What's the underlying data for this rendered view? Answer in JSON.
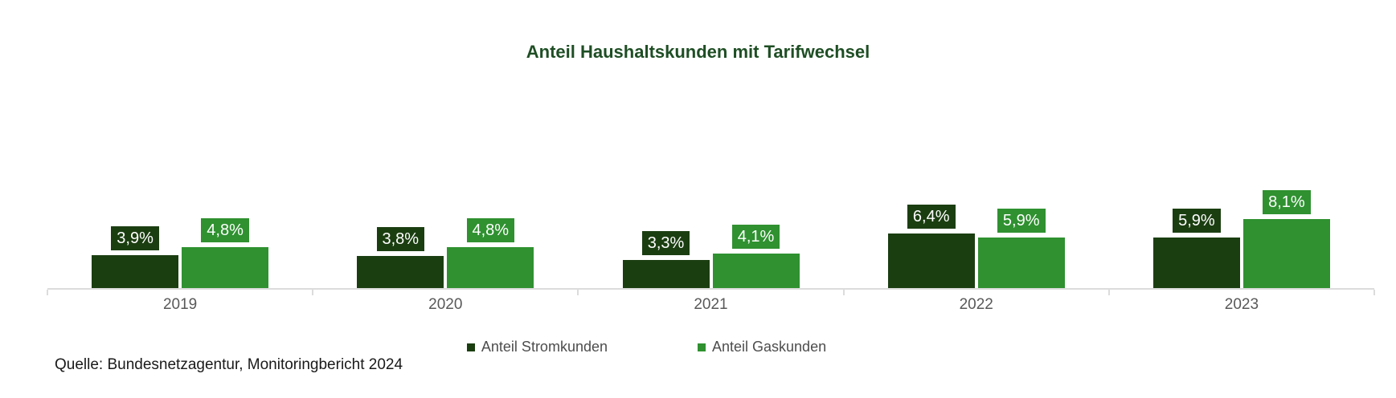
{
  "chart_data": {
    "type": "bar",
    "title": "Anteil Haushaltskunden mit Tarifwechsel",
    "categories": [
      "2019",
      "2020",
      "2021",
      "2022",
      "2023"
    ],
    "series": [
      {
        "name": "Anteil Stromkunden",
        "color": "#1b3e11",
        "values": [
          3.9,
          3.8,
          3.3,
          6.4,
          5.9
        ],
        "labels": [
          "3,9%",
          "3,8%",
          "3,3%",
          "6,4%",
          "5,9%"
        ]
      },
      {
        "name": "Anteil Gaskunden",
        "color": "#2f9130",
        "values": [
          4.8,
          4.8,
          4.1,
          5.9,
          8.1
        ],
        "labels": [
          "4,8%",
          "4,8%",
          "4,1%",
          "5,9%",
          "8,1%"
        ]
      }
    ],
    "value_suffix": "%",
    "decimal_separator": ",",
    "ylim": [
      0,
      8.5
    ],
    "grid": false,
    "legend_position": "bottom",
    "source": "Quelle: Bundesnetzagentur, Monitoringbericht 2024"
  },
  "colors": {
    "background": "#ffffff",
    "title_text": "#1e4e24",
    "axis_line": "#dcdcdc",
    "year_label_text": "#595959",
    "legend_text": "#4d4d4d",
    "source_text": "#1a1a1a",
    "value_label_text": "#ffffff"
  }
}
